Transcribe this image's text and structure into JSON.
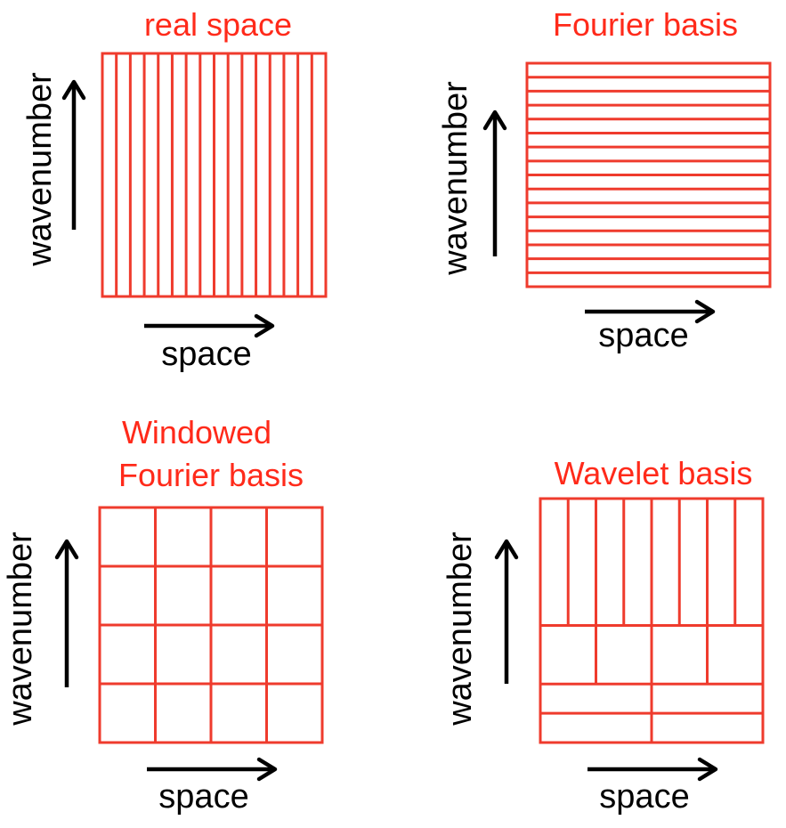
{
  "colors": {
    "grid": "#ef3b2d",
    "title": "#ff2a1a",
    "axis": "#000000"
  },
  "panels": [
    {
      "id": "real-space",
      "title_lines": [
        "real space"
      ],
      "x_axis_label": "space",
      "y_axis_label": "wavenumber",
      "tiling": "vertical strips",
      "columns": 16,
      "rows": 1
    },
    {
      "id": "fourier",
      "title_lines": [
        "Fourier basis"
      ],
      "x_axis_label": "space",
      "y_axis_label": "wavenumber",
      "tiling": "horizontal strips",
      "columns": 1,
      "rows": 16
    },
    {
      "id": "windowed-fourier",
      "title_lines": [
        "Windowed",
        "Fourier basis"
      ],
      "x_axis_label": "space",
      "y_axis_label": "wavenumber",
      "tiling": "uniform grid",
      "columns": 4,
      "rows": 4
    },
    {
      "id": "wavelet",
      "title_lines": [
        "Wavelet basis"
      ],
      "x_axis_label": "space",
      "y_axis_label": "wavenumber",
      "tiling": "dyadic",
      "levels": [
        {
          "columns": 8
        },
        {
          "columns": 4
        },
        {
          "columns": 2
        },
        {
          "columns": 2
        }
      ]
    }
  ]
}
